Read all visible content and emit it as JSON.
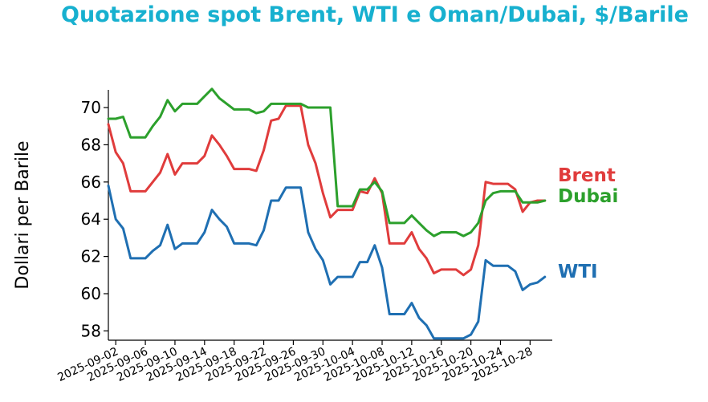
{
  "chart_data": {
    "type": "line",
    "title": "Quotazione spot Brent, WTI e Oman/Dubai, $/Barile",
    "ylabel": "Dollari per Barile",
    "xlabel": "",
    "ylim": [
      57.5,
      70.95
    ],
    "yticks": [
      58,
      60,
      62,
      64,
      66,
      68,
      70
    ],
    "x_range": [
      "2025-09-01",
      "2025-10-31"
    ],
    "xticks": [
      "2025-09-02",
      "2025-09-06",
      "2025-09-10",
      "2025-09-14",
      "2025-09-18",
      "2025-09-22",
      "2025-09-26",
      "2025-09-30",
      "2025-10-04",
      "2025-10-08",
      "2025-10-12",
      "2025-10-16",
      "2025-10-20",
      "2025-10-24",
      "2025-10-28"
    ],
    "x": [
      "2025-09-01",
      "2025-09-02",
      "2025-09-03",
      "2025-09-04",
      "2025-09-05",
      "2025-09-06",
      "2025-09-07",
      "2025-09-08",
      "2025-09-09",
      "2025-09-10",
      "2025-09-11",
      "2025-09-12",
      "2025-09-13",
      "2025-09-14",
      "2025-09-15",
      "2025-09-16",
      "2025-09-17",
      "2025-09-18",
      "2025-09-19",
      "2025-09-20",
      "2025-09-21",
      "2025-09-22",
      "2025-09-23",
      "2025-09-24",
      "2025-09-25",
      "2025-09-26",
      "2025-09-27",
      "2025-09-28",
      "2025-09-29",
      "2025-09-30",
      "2025-10-01",
      "2025-10-02",
      "2025-10-03",
      "2025-10-04",
      "2025-10-05",
      "2025-10-06",
      "2025-10-07",
      "2025-10-08",
      "2025-10-09",
      "2025-10-10",
      "2025-10-11",
      "2025-10-12",
      "2025-10-13",
      "2025-10-14",
      "2025-10-15",
      "2025-10-16",
      "2025-10-17",
      "2025-10-18",
      "2025-10-19",
      "2025-10-20",
      "2025-10-21",
      "2025-10-22",
      "2025-10-23",
      "2025-10-24",
      "2025-10-25",
      "2025-10-26",
      "2025-10-27",
      "2025-10-28",
      "2025-10-29",
      "2025-10-30"
    ],
    "series": [
      {
        "name": "Brent",
        "color": "#e03c3c",
        "values": [
          69.1,
          67.6,
          67.0,
          65.5,
          65.5,
          65.5,
          66.0,
          66.5,
          67.5,
          66.4,
          67.0,
          67.0,
          67.0,
          67.4,
          68.5,
          68.0,
          67.4,
          66.7,
          66.7,
          66.7,
          66.6,
          67.7,
          69.3,
          69.4,
          70.1,
          70.1,
          70.1,
          68.0,
          67.0,
          65.4,
          64.1,
          64.5,
          64.5,
          64.5,
          65.5,
          65.4,
          66.2,
          65.4,
          62.7,
          62.7,
          62.7,
          63.3,
          62.4,
          61.9,
          61.1,
          61.3,
          61.3,
          61.3,
          61.0,
          61.3,
          62.6,
          66.0,
          65.9,
          65.9,
          65.9,
          65.6,
          64.4,
          64.9,
          65.0,
          65.0
        ]
      },
      {
        "name": "Dubai",
        "color": "#2ca02c",
        "values": [
          69.4,
          69.4,
          69.5,
          68.4,
          68.4,
          68.4,
          69.0,
          69.5,
          70.4,
          69.8,
          70.2,
          70.2,
          70.2,
          70.6,
          71.0,
          70.5,
          70.2,
          69.9,
          69.9,
          69.9,
          69.7,
          69.8,
          70.2,
          70.2,
          70.2,
          70.2,
          70.2,
          70.0,
          70.0,
          70.0,
          70.0,
          64.7,
          64.7,
          64.7,
          65.6,
          65.6,
          66.0,
          65.5,
          63.8,
          63.8,
          63.8,
          64.2,
          63.8,
          63.4,
          63.1,
          63.3,
          63.3,
          63.3,
          63.1,
          63.3,
          63.8,
          65.0,
          65.4,
          65.5,
          65.5,
          65.5,
          64.9,
          64.9,
          64.9,
          65.0
        ]
      },
      {
        "name": "WTI",
        "color": "#1f6fb2",
        "values": [
          65.8,
          64.0,
          63.5,
          61.9,
          61.9,
          61.9,
          62.3,
          62.6,
          63.7,
          62.4,
          62.7,
          62.7,
          62.7,
          63.3,
          64.5,
          64.0,
          63.6,
          62.7,
          62.7,
          62.7,
          62.6,
          63.4,
          65.0,
          65.0,
          65.7,
          65.7,
          65.7,
          63.3,
          62.4,
          61.8,
          60.5,
          60.9,
          60.9,
          60.9,
          61.7,
          61.7,
          62.6,
          61.4,
          58.9,
          58.9,
          58.9,
          59.5,
          58.7,
          58.3,
          57.6,
          57.6,
          57.6,
          57.6,
          57.6,
          57.8,
          58.5,
          61.8,
          61.5,
          61.5,
          61.5,
          61.2,
          60.2,
          60.5,
          60.6,
          60.9
        ]
      }
    ],
    "series_labels": [
      {
        "text": "Brent",
        "color": "#e03c3c"
      },
      {
        "text": "Dubai",
        "color": "#2ca02c"
      },
      {
        "text": "WTI",
        "color": "#1f6fb2"
      }
    ],
    "grid": false,
    "legend": "inline labels at right"
  }
}
